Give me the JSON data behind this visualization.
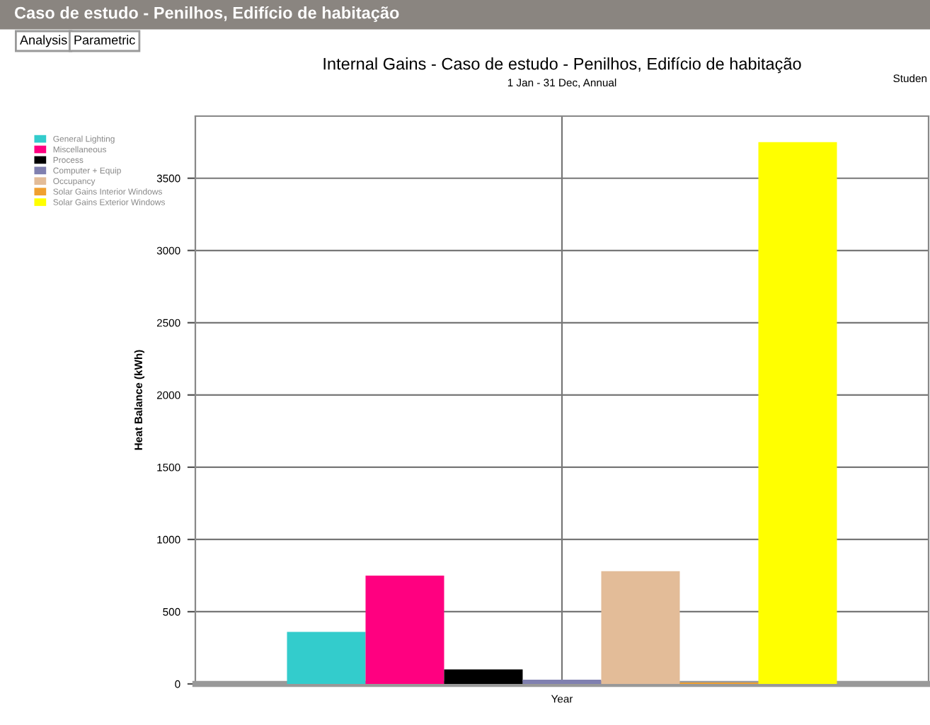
{
  "chart_data": {
    "type": "bar",
    "title": "Internal Gains - Caso de estudo - Penilhos, Edifício de habitação",
    "subtitle": "1 Jan - 31 Dec, Annual",
    "ylabel": "Heat Balance (kWh)",
    "xlabel": "Year",
    "annotations": [
      "Caso de estudo - Penilhos, Edifício de habitação",
      "Analysis",
      "Parametric",
      "Studen"
    ],
    "categories": [
      null
    ],
    "series": [
      {
        "name": "General Lighting",
        "color": "#33cccc",
        "values": [
          360
        ]
      },
      {
        "name": "Miscellaneous",
        "color": "#ff0080",
        "values": [
          750
        ]
      },
      {
        "name": "Process",
        "color": "#000000",
        "values": [
          100
        ]
      },
      {
        "name": "Computer + Equip",
        "color": "#8080b0",
        "values": [
          30
        ]
      },
      {
        "name": "Occupancy",
        "color": "#e3bc98",
        "values": [
          780
        ]
      },
      {
        "name": "Solar Gains Interior Windows",
        "color": "#f0a030",
        "values": [
          10
        ]
      },
      {
        "name": "Solar Gains Exterior Windows",
        "color": "#ffff00",
        "values": [
          3750
        ]
      }
    ],
    "ylim": [
      0,
      3930
    ],
    "yticks": [
      0,
      500,
      1000,
      1500,
      2000,
      2500,
      3000,
      3500
    ],
    "grid": true,
    "legend": "top left"
  }
}
